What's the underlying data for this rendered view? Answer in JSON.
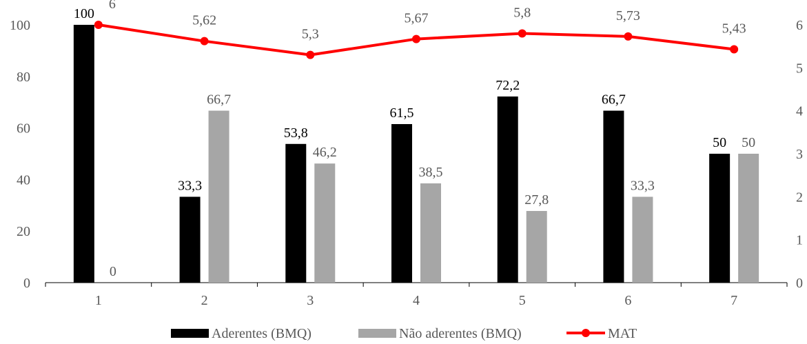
{
  "chart_data": {
    "type": "bar",
    "categories": [
      "1",
      "2",
      "3",
      "4",
      "5",
      "6",
      "7"
    ],
    "series": [
      {
        "name": "Aderentes (BMQ)",
        "kind": "bar",
        "axis": "left",
        "color": "#000000",
        "values": [
          100,
          33.3,
          53.8,
          61.5,
          72.2,
          66.7,
          50
        ],
        "labels": [
          "100",
          "33,3",
          "53,8",
          "61,5",
          "72,2",
          "66,7",
          "50"
        ]
      },
      {
        "name": "Não aderentes (BMQ)",
        "kind": "bar",
        "axis": "left",
        "color": "#a6a6a6",
        "values": [
          0,
          66.7,
          46.2,
          38.5,
          27.8,
          33.3,
          50
        ],
        "labels": [
          "0",
          "66,7",
          "46,2",
          "38,5",
          "27,8",
          "33,3",
          "50"
        ]
      },
      {
        "name": "MAT",
        "kind": "line",
        "axis": "right",
        "color": "#ff0000",
        "values": [
          6,
          5.62,
          5.3,
          5.67,
          5.8,
          5.73,
          5.43
        ],
        "labels": [
          "6",
          "5,62",
          "5,3",
          "5,67",
          "5,8",
          "5,73",
          "5,43"
        ]
      }
    ],
    "y_left": {
      "min": 0,
      "max": 100,
      "ticks": [
        "0",
        "20",
        "40",
        "60",
        "80",
        "100"
      ]
    },
    "y_right": {
      "min": 0,
      "max": 6,
      "ticks": [
        "0",
        "1",
        "2",
        "3",
        "4",
        "5",
        "6"
      ]
    },
    "grid": false,
    "legend_position": "bottom"
  }
}
